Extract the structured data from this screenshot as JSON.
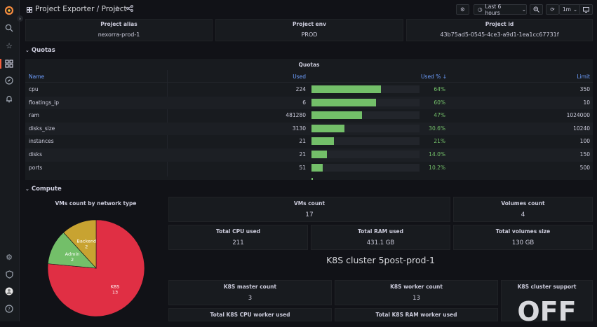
{
  "topbar": {
    "title": "Project Exporter",
    "subtitle": "Project",
    "time_range": "Last 6 hours",
    "refresh": "1m"
  },
  "info": {
    "alias_title": "Project alias",
    "alias_value": "nexorra-prod-1",
    "env_title": "Project env",
    "env_value": "PROD",
    "id_title": "Project id",
    "id_value": "43b75ad5-0545-4ce3-a9d1-1ea1cc67731f"
  },
  "quotas_row": "Quotas",
  "quotas_panel": {
    "title": "Quotas",
    "headers": {
      "name": "Name",
      "used": "Used",
      "usedpct": "Used % ↓",
      "limit": "Limit"
    },
    "rows": [
      {
        "name": "cpu",
        "used": "224",
        "pct_label": "64%",
        "pct": 64,
        "limit": "350"
      },
      {
        "name": "floatings_ip",
        "used": "6",
        "pct_label": "60%",
        "pct": 60,
        "limit": "10"
      },
      {
        "name": "ram",
        "used": "481280",
        "pct_label": "47%",
        "pct": 47,
        "limit": "1024000"
      },
      {
        "name": "disks_size",
        "used": "3130",
        "pct_label": "30.6%",
        "pct": 30.6,
        "limit": "10240"
      },
      {
        "name": "instances",
        "used": "21",
        "pct_label": "21%",
        "pct": 21,
        "limit": "100"
      },
      {
        "name": "disks",
        "used": "21",
        "pct_label": "14.0%",
        "pct": 14,
        "limit": "150"
      },
      {
        "name": "ports",
        "used": "51",
        "pct_label": "10.2%",
        "pct": 10.2,
        "limit": "500"
      }
    ]
  },
  "compute_row": "Compute",
  "pie": {
    "title": "VMs count by network type",
    "slices": [
      {
        "label": "K8S",
        "value": 13,
        "color": "#e02f44"
      },
      {
        "label": "Admin",
        "value": 2,
        "color": "#73bf69"
      },
      {
        "label": "Backend",
        "value": 2,
        "color": "#c8a331"
      }
    ]
  },
  "stats": {
    "vms_title": "VMs count",
    "vms_value": "17",
    "volumes_title": "Volumes count",
    "volumes_value": "4",
    "cpu_title": "Total CPU used",
    "cpu_value": "211",
    "ram_title": "Total RAM used",
    "ram_value": "431.1 GB",
    "vol_size_title": "Total volumes size",
    "vol_size_value": "130 GB",
    "k8s_heading": "K8S cluster 5post-prod-1",
    "master_title": "K8S master count",
    "master_value": "3",
    "worker_title": "K8S worker count",
    "worker_value": "13",
    "support_title": "K8S cluster support",
    "support_value": "OFF",
    "cpu_worker_title": "Total K8S CPU worker used",
    "ram_worker_title": "Total K8S RAM worker used"
  },
  "colors": {
    "accent": "#73bf69",
    "k8s": "#e02f44",
    "admin": "#73bf69",
    "backend": "#c8a331"
  }
}
